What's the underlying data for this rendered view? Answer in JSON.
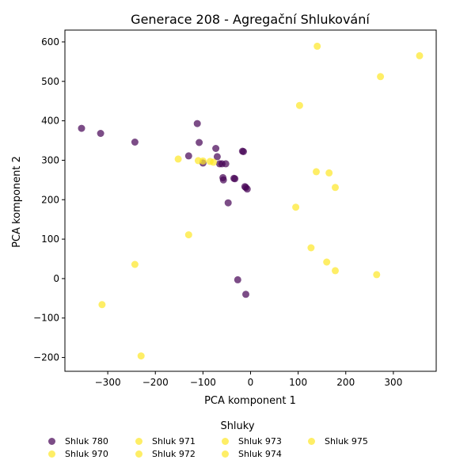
{
  "chart_data": {
    "type": "scatter",
    "title": "Generace 208 - Agregační Shlukování",
    "xlabel": "PCA komponent 1",
    "ylabel": "PCA komponent 2",
    "xlim": [
      -390,
      390
    ],
    "ylim": [
      -235,
      630
    ],
    "xticks": [
      -300,
      -200,
      -100,
      0,
      100,
      200,
      300
    ],
    "yticks": [
      -200,
      -100,
      0,
      100,
      200,
      300,
      400,
      500,
      600
    ],
    "xtick_labels": [
      "−300",
      "−200",
      "−100",
      "0",
      "100",
      "200",
      "300"
    ],
    "ytick_labels": [
      "−200",
      "−100",
      "0",
      "100",
      "200",
      "300",
      "400",
      "500",
      "600"
    ],
    "grid": false,
    "legend_title": "Shluky",
    "legend_placement": "below",
    "series": [
      {
        "name": "Shluk 780",
        "color": "#440154",
        "points": [
          [
            -355,
            381
          ],
          [
            -315,
            368
          ],
          [
            -243,
            346
          ],
          [
            -112,
            393
          ],
          [
            -130,
            311
          ],
          [
            -108,
            345
          ],
          [
            -73,
            330
          ],
          [
            -70,
            309
          ],
          [
            -60,
            291
          ],
          [
            -52,
            291
          ],
          [
            -100,
            293
          ],
          [
            -65,
            291
          ],
          [
            -58,
            256
          ],
          [
            -57,
            250
          ],
          [
            -35,
            254
          ],
          [
            -33,
            253
          ],
          [
            -47,
            192
          ],
          [
            -17,
            323
          ],
          [
            -15,
            322
          ],
          [
            -12,
            233
          ],
          [
            -10,
            231
          ],
          [
            -7,
            227
          ],
          [
            -27,
            -3
          ],
          [
            -10,
            -40
          ]
        ]
      },
      {
        "name": "Shluk 970",
        "color": "#fde725",
        "points": [
          [
            -110,
            299
          ],
          [
            -100,
            298
          ],
          [
            -85,
            297
          ],
          [
            -78,
            295
          ],
          [
            -152,
            303
          ],
          [
            -130,
            111
          ],
          [
            -243,
            36
          ],
          [
            -312,
            -66
          ],
          [
            -230,
            -196
          ]
        ]
      },
      {
        "name": "Shluk 971",
        "color": "#fde725",
        "points": [
          [
            140,
            589
          ],
          [
            355,
            565
          ],
          [
            273,
            512
          ]
        ]
      },
      {
        "name": "Shluk 972",
        "color": "#fde725",
        "points": [
          [
            103,
            439
          ],
          [
            138,
            271
          ],
          [
            165,
            268
          ],
          [
            178,
            231
          ],
          [
            95,
            181
          ]
        ]
      },
      {
        "name": "Shluk 973",
        "color": "#fde725",
        "points": [
          [
            127,
            78
          ],
          [
            160,
            42
          ],
          [
            178,
            20
          ],
          [
            265,
            10
          ]
        ]
      },
      {
        "name": "Shluk 974",
        "color": "#fde725",
        "points": []
      },
      {
        "name": "Shluk 975",
        "color": "#fde725",
        "points": []
      }
    ]
  },
  "legend": {
    "title": "Shluky",
    "items": [
      {
        "label": "Shluk 780",
        "color": "#440154"
      },
      {
        "label": "Shluk 970",
        "color": "#fde725"
      },
      {
        "label": "Shluk 971",
        "color": "#fde725"
      },
      {
        "label": "Shluk 972",
        "color": "#fde725"
      },
      {
        "label": "Shluk 973",
        "color": "#fde725"
      },
      {
        "label": "Shluk 974",
        "color": "#fde725"
      },
      {
        "label": "Shluk 975",
        "color": "#fde725"
      }
    ]
  }
}
